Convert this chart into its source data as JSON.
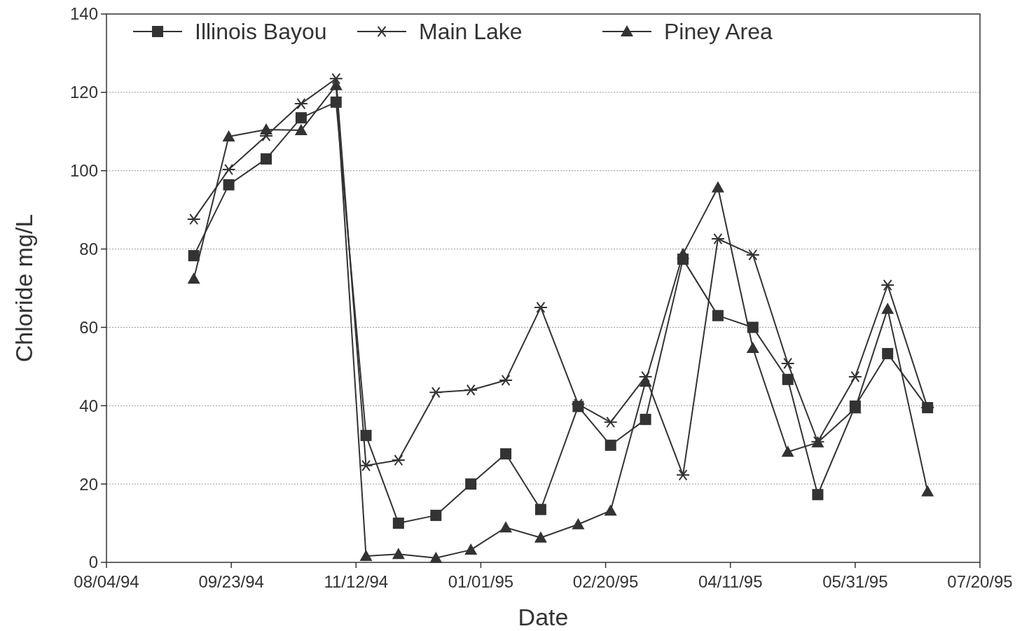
{
  "chart_data": {
    "type": "line",
    "xlabel": "Date",
    "ylabel": "Chloride mg/L",
    "x": [
      "1994-09-08",
      "1994-09-22",
      "1994-10-07",
      "1994-10-21",
      "1994-11-04",
      "1994-11-16",
      "1994-11-29",
      "1994-12-14",
      "1994-12-28",
      "1995-01-11",
      "1995-01-25",
      "1995-02-09",
      "1995-02-22",
      "1995-03-08",
      "1995-03-23",
      "1995-04-06",
      "1995-04-20",
      "1995-05-04",
      "1995-05-16",
      "1995-05-31",
      "1995-06-13",
      "1995-06-29"
    ],
    "series": [
      {
        "name": "Illinois Bayou",
        "color": "#333333",
        "marker": "square",
        "values": [
          78.3,
          96.4,
          103,
          113.5,
          117.5,
          32.4,
          10,
          12,
          20,
          27.7,
          13.5,
          39.8,
          29.9,
          36.5,
          77.4,
          63,
          60,
          46.7,
          17.3,
          39.9,
          53.3,
          39.5
        ]
      },
      {
        "name": "Main Lake",
        "color": "#333333",
        "marker": "cross",
        "values": [
          87.6,
          100.3,
          108.9,
          117.1,
          123.5,
          24.7,
          26.1,
          43.4,
          44,
          46.5,
          65.1,
          40.4,
          35.8,
          47.4,
          22.3,
          82.6,
          78.5,
          50.8,
          30.8,
          47.4,
          70.8,
          39.5
        ]
      },
      {
        "name": "Piney Area",
        "color": "#333333",
        "marker": "triangle",
        "values": [
          72.4,
          108.7,
          110.5,
          110.3,
          121.8,
          1.6,
          2.1,
          1.1,
          3.2,
          8.9,
          6.3,
          9.7,
          13.2,
          46.1,
          78.7,
          95.7,
          54.7,
          28.2,
          30.6,
          39.3,
          64.7,
          18.1
        ]
      }
    ],
    "xlim": [
      "1994-08-04",
      "1995-07-20"
    ],
    "xticks": [
      {
        "value": "1994-08-04",
        "label": "08/04/94"
      },
      {
        "value": "1994-09-23",
        "label": "09/23/94"
      },
      {
        "value": "1994-11-12",
        "label": "11/12/94"
      },
      {
        "value": "1995-01-01",
        "label": "01/01/95"
      },
      {
        "value": "1995-02-20",
        "label": "02/20/95"
      },
      {
        "value": "1995-04-11",
        "label": "04/11/95"
      },
      {
        "value": "1995-05-31",
        "label": "05/31/95"
      },
      {
        "value": "1995-07-20",
        "label": "07/20/95"
      }
    ],
    "ylim": [
      0,
      140
    ],
    "yticks": [
      0,
      20,
      40,
      60,
      80,
      100,
      120,
      140
    ],
    "grid": "y",
    "legend": "top left",
    "line_style": "solid"
  }
}
